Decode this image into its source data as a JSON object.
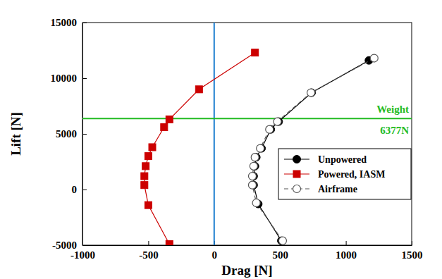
{
  "chart_data": {
    "type": "line",
    "x_label": "Drag [N]",
    "y_label": "Lift [N]",
    "xlim": [
      -1000,
      1500
    ],
    "xticks": [
      -1000,
      -500,
      0,
      500,
      1000,
      1500
    ],
    "ylim": [
      -5000,
      15000
    ],
    "yticks": [
      -5000,
      0,
      5000,
      10000,
      15000
    ],
    "legend": "lower right",
    "hlines": [
      {
        "value": 6377,
        "color": "#22bb22",
        "labels": [
          "Weight",
          "6377N"
        ]
      }
    ],
    "vlines": [
      {
        "value": 0,
        "color": "#1e7fd0"
      }
    ],
    "series": [
      {
        "name": "Unpowered",
        "color": "#000000",
        "marker": "circle",
        "line_style": "solid",
        "x": [
          510,
          335,
          300,
          300,
          310,
          320,
          360,
          430,
          490,
          740,
          1175
        ],
        "values": [
          -4600,
          -1300,
          400,
          1200,
          2100,
          2900,
          3700,
          5400,
          6100,
          8700,
          11600
        ]
      },
      {
        "name": "Powered, IASM",
        "color": "#cc0000",
        "marker": "square",
        "line_style": "solid",
        "x": [
          -340,
          -500,
          -530,
          -530,
          -520,
          -500,
          -470,
          -380,
          -340,
          -115,
          310
        ],
        "values": [
          -4900,
          -1400,
          400,
          1200,
          2100,
          3000,
          3800,
          5600,
          6300,
          9000,
          12300
        ]
      },
      {
        "name": "Airframe",
        "color": "#555555",
        "marker": "open-circle",
        "line_style": "dashed",
        "x": [
          520,
          320,
          290,
          290,
          300,
          310,
          350,
          420,
          480,
          735,
          1215
        ],
        "values": [
          -4600,
          -1200,
          400,
          1200,
          2100,
          2900,
          3700,
          5400,
          6100,
          8700,
          11800
        ]
      }
    ]
  }
}
